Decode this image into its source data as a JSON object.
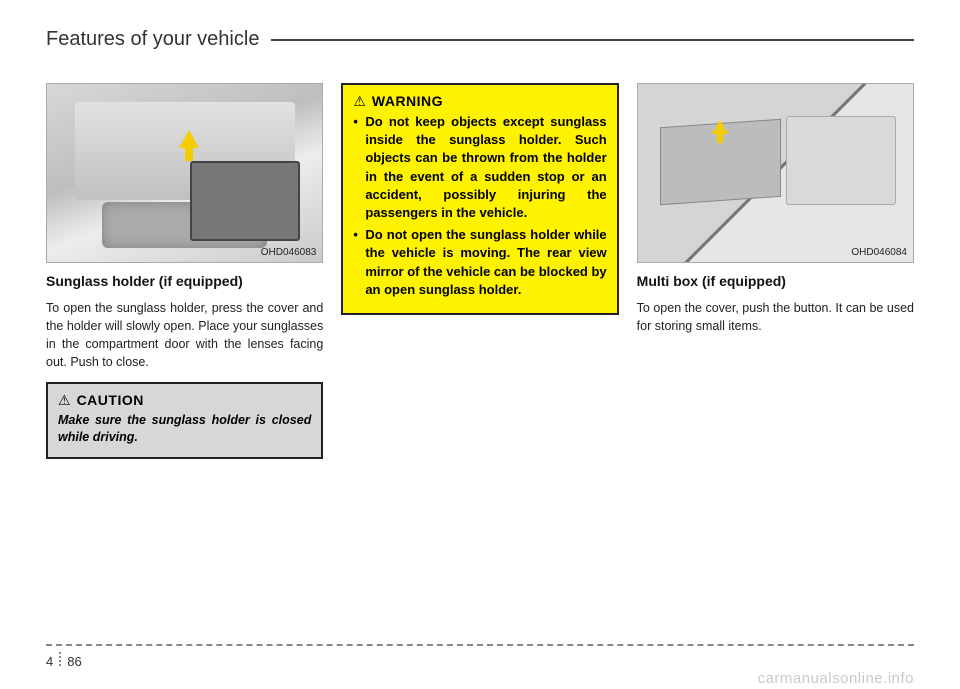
{
  "header": {
    "title": "Features of your vehicle"
  },
  "col1": {
    "figure_code": "OHD046083",
    "subhead": "Sunglass holder (if equipped)",
    "body": "To open the sunglass holder, press the cover and the holder will slowly open. Place your sunglasses in the compartment door with the lenses facing out. Push to close.",
    "caution_label": "CAUTION",
    "caution_body": "Make sure the sunglass holder is closed while driving."
  },
  "col2": {
    "warning_label": "WARNING",
    "warning_items": [
      "Do not keep objects except sunglass inside the sunglass holder. Such objects can be thrown from the holder in the event of a sudden stop or an accident, possibly injuring the passengers in the vehicle.",
      "Do not open the sunglass holder while the vehicle is moving. The rear view mirror of the vehicle can be blocked by an open sunglass holder."
    ]
  },
  "col3": {
    "figure_code": "OHD046084",
    "subhead": "Multi box (if equipped)",
    "body": "To open the cover, push the button. It can be used for storing small items."
  },
  "footer": {
    "section": "4",
    "page": "86"
  },
  "watermark": "carmanualsonline.info",
  "colors": {
    "warning_bg": "#fff200",
    "caution_bg": "#d7d7d7",
    "rule": "#444444"
  }
}
